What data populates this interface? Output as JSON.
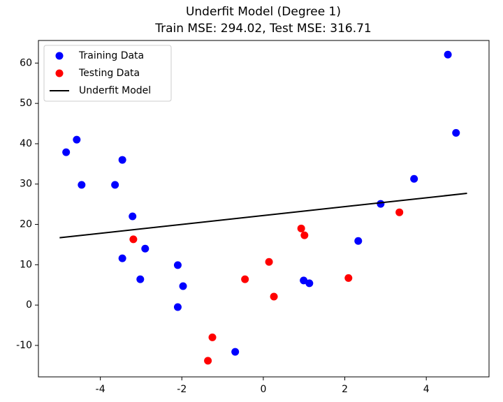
{
  "chart_data": {
    "type": "scatter",
    "title": "Underfit Model (Degree 1)",
    "subtitle": "Train MSE: 294.02, Test MSE: 316.71",
    "xlim": [
      -5.52,
      5.54
    ],
    "ylim": [
      -17.8,
      65.6
    ],
    "xticks": [
      -4,
      -2,
      0,
      2,
      4
    ],
    "yticks": [
      -10,
      0,
      10,
      20,
      30,
      40,
      50,
      60
    ],
    "legend": "upper left",
    "series": [
      {
        "name": "Training Data",
        "color": "#0000ff",
        "type": "scatter",
        "x": [
          -4.84,
          -4.58,
          -4.46,
          -3.46,
          -3.64,
          -3.21,
          -3.46,
          -2.9,
          -3.02,
          -2.1,
          -1.97,
          -2.1,
          -0.69,
          0.99,
          1.13,
          2.33,
          2.88,
          3.7,
          4.53,
          4.73
        ],
        "values": [
          37.9,
          41.0,
          29.8,
          36.0,
          29.8,
          22.0,
          11.6,
          14.0,
          6.4,
          9.9,
          4.7,
          -0.5,
          -11.6,
          6.1,
          5.4,
          15.9,
          25.1,
          31.3,
          62.1,
          42.7
        ]
      },
      {
        "name": "Testing Data",
        "color": "#ff0000",
        "type": "scatter",
        "x": [
          -3.19,
          -1.25,
          -1.36,
          -0.45,
          0.14,
          0.26,
          0.93,
          1.01,
          2.09,
          3.34
        ],
        "values": [
          16.3,
          -8.0,
          -13.8,
          6.4,
          10.7,
          2.1,
          19.0,
          17.3,
          6.7,
          23.0
        ]
      },
      {
        "name": "Underfit Model",
        "color": "#000000",
        "type": "line",
        "x": [
          -5,
          5
        ],
        "values": [
          16.7,
          27.7
        ]
      }
    ]
  }
}
